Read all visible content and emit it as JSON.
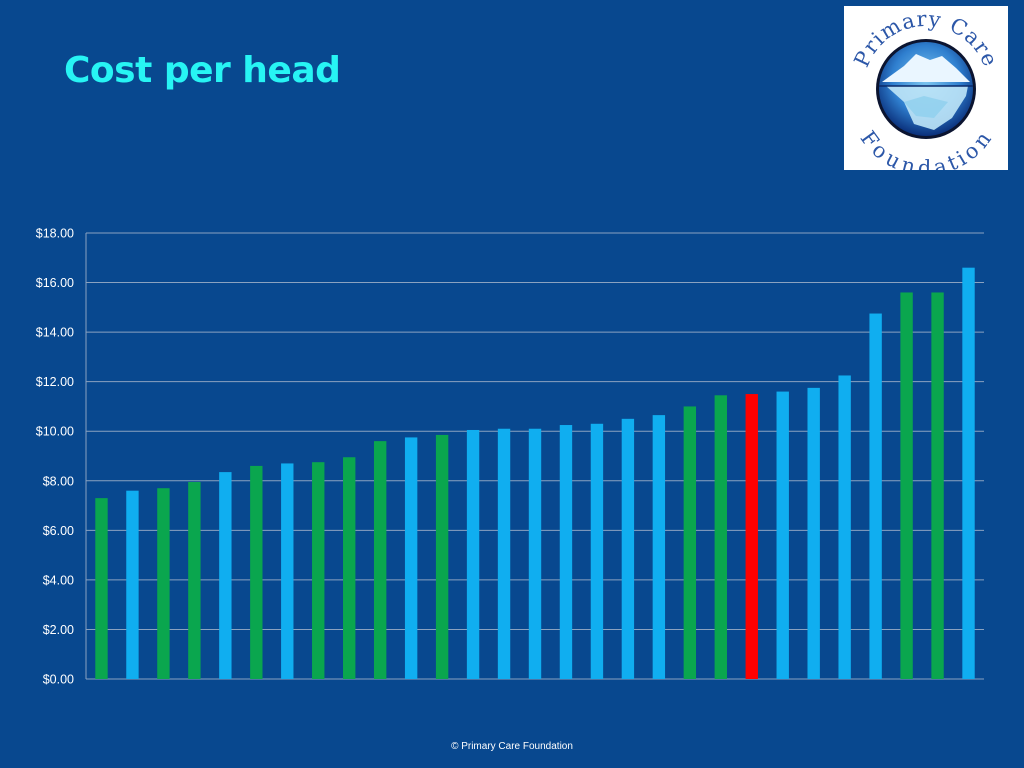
{
  "slide": {
    "title": "Cost per head",
    "footer": "© Primary Care Foundation"
  },
  "logo": {
    "icon": "iceberg-globe-icon",
    "text_top": "Primary Care",
    "text_bottom": "Foundation"
  },
  "colors": {
    "background": "#08488f",
    "title": "#27f4f4",
    "green": "#0aa64e",
    "blue": "#10aef0",
    "red": "#ff0000",
    "grid": "#8aa2c0"
  },
  "chart_data": {
    "type": "bar",
    "ylim": [
      0,
      18
    ],
    "ytick_step": 2,
    "ytick_prefix": "$",
    "ytick_decimals": 2,
    "grid": true,
    "legend": "none",
    "values": [
      7.3,
      7.6,
      7.7,
      7.95,
      8.35,
      8.6,
      8.7,
      8.75,
      8.95,
      9.6,
      9.75,
      9.85,
      10.05,
      10.1,
      10.1,
      10.25,
      10.3,
      10.5,
      10.65,
      11.0,
      11.45,
      11.5,
      11.6,
      11.75,
      12.25,
      14.75,
      15.6,
      15.6,
      16.6
    ],
    "colors": [
      "green",
      "blue",
      "green",
      "green",
      "blue",
      "green",
      "blue",
      "green",
      "green",
      "green",
      "blue",
      "green",
      "blue",
      "blue",
      "blue",
      "blue",
      "blue",
      "blue",
      "blue",
      "green",
      "green",
      "red",
      "blue",
      "blue",
      "blue",
      "blue",
      "green",
      "green",
      "blue"
    ]
  }
}
